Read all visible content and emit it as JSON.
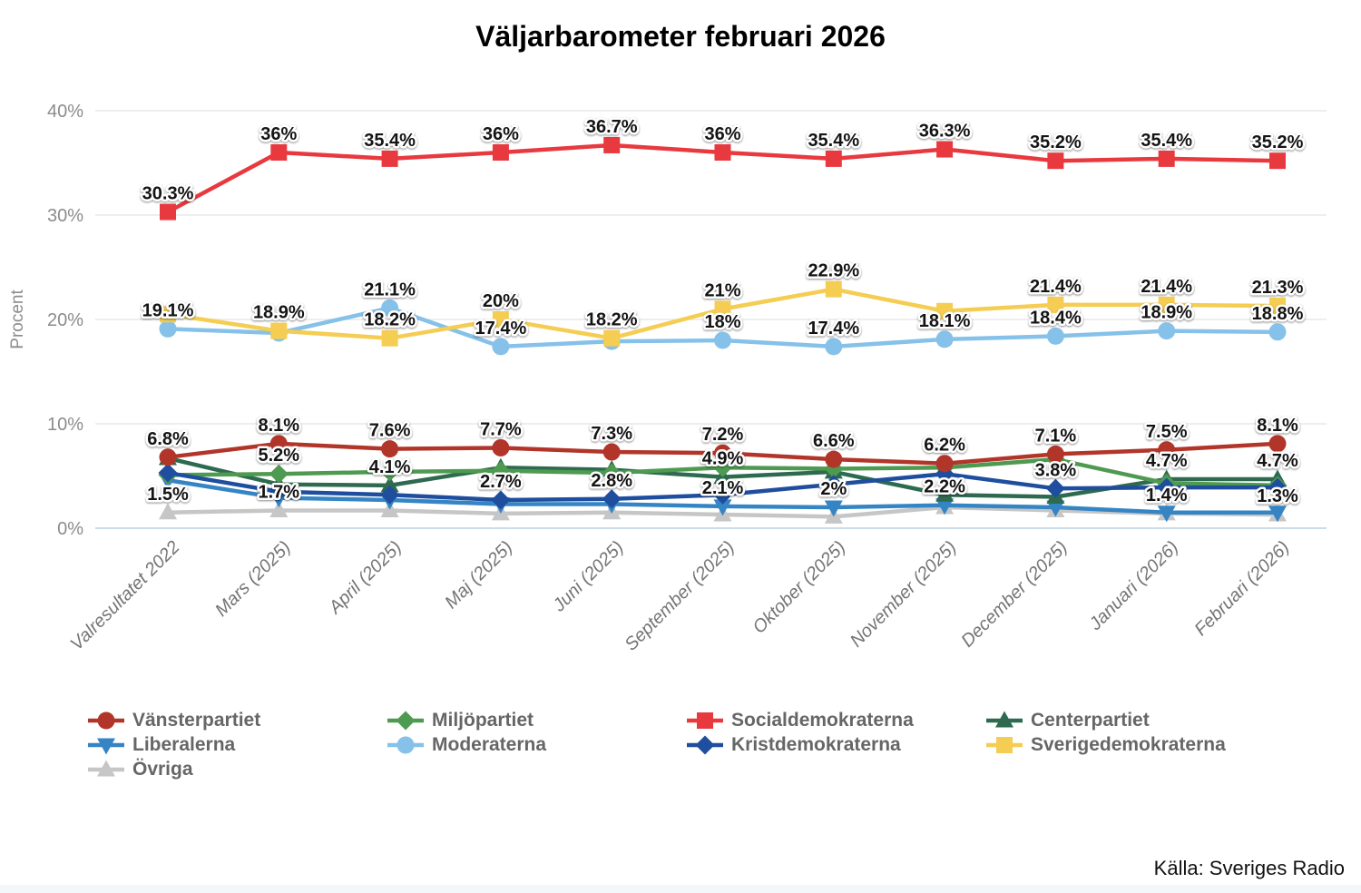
{
  "title": "Väljarbarometer februari 2026",
  "source": "Källa: Sveriges Radio",
  "chart_data": {
    "type": "line",
    "title": "Väljarbarometer februari 2026",
    "ylabel": "Procent",
    "ylim": [
      0,
      40
    ],
    "grid": true,
    "legend_position": "bottom",
    "yticks": [
      {
        "v": 0,
        "label": "0%"
      },
      {
        "v": 10,
        "label": "10%"
      },
      {
        "v": 20,
        "label": "20%"
      },
      {
        "v": 30,
        "label": "30%"
      },
      {
        "v": 40,
        "label": "40%"
      }
    ],
    "categories": [
      "Valresultatet 2022",
      "Mars (2025)",
      "April (2025)",
      "Maj (2025)",
      "Juni (2025)",
      "September (2025)",
      "Oktober (2025)",
      "November (2025)",
      "December (2025)",
      "Januari (2026)",
      "Februari (2026)"
    ],
    "series": [
      {
        "id": "ovriga",
        "name": "Övriga",
        "color": "#c6c6c6",
        "marker": "triangle-up",
        "values": [
          1.5,
          1.7,
          1.7,
          1.4,
          1.5,
          1.3,
          1.1,
          2.0,
          1.7,
          1.4,
          1.3
        ],
        "labels": [
          "1.5%",
          "1.7%",
          null,
          null,
          null,
          null,
          null,
          null,
          null,
          "1.4%",
          "1.3%"
        ]
      },
      {
        "id": "liberalerna",
        "name": "Liberalerna",
        "color": "#3585c5",
        "marker": "triangle-down",
        "values": [
          4.6,
          2.9,
          2.7,
          2.3,
          2.3,
          2.1,
          2.0,
          2.2,
          2.0,
          1.5,
          1.5
        ],
        "labels": [
          null,
          null,
          null,
          null,
          null,
          "2.1%",
          "2%",
          "2.2%",
          null,
          null,
          null
        ]
      },
      {
        "id": "centerpartiet",
        "name": "Centerpartiet",
        "color": "#2d6a4f",
        "marker": "triangle-up",
        "values": [
          6.7,
          4.2,
          4.1,
          5.8,
          5.6,
          4.9,
          5.4,
          3.2,
          3.0,
          4.7,
          4.7
        ],
        "labels": [
          null,
          null,
          "4.1%",
          null,
          null,
          "4.9%",
          null,
          null,
          null,
          "4.7%",
          "4.7%"
        ]
      },
      {
        "id": "miljopartiet",
        "name": "Miljöpartiet",
        "color": "#4e9a51",
        "marker": "diamond",
        "values": [
          5.1,
          5.2,
          5.4,
          5.5,
          5.3,
          5.8,
          5.7,
          5.8,
          6.6,
          4.3,
          4.1
        ],
        "labels": [
          null,
          "5.2%",
          null,
          null,
          null,
          null,
          null,
          null,
          null,
          null,
          null
        ]
      },
      {
        "id": "kristdemokraterna",
        "name": "Kristdemokraterna",
        "color": "#1f4e9e",
        "marker": "diamond",
        "values": [
          5.3,
          3.5,
          3.2,
          2.7,
          2.8,
          3.2,
          4.2,
          5.2,
          3.8,
          3.9,
          3.9
        ],
        "labels": [
          null,
          null,
          null,
          "2.7%",
          "2.8%",
          null,
          null,
          null,
          "3.8%",
          null,
          null
        ]
      },
      {
        "id": "vansterpartiet",
        "name": "Vänsterpartiet",
        "color": "#b23529",
        "marker": "circle",
        "values": [
          6.8,
          8.1,
          7.6,
          7.7,
          7.3,
          7.2,
          6.6,
          6.2,
          7.1,
          7.5,
          8.1
        ],
        "labels": [
          "6.8%",
          "8.1%",
          "7.6%",
          "7.7%",
          "7.3%",
          "7.2%",
          "6.6%",
          "6.2%",
          "7.1%",
          "7.5%",
          "8.1%"
        ]
      },
      {
        "id": "moderaterna",
        "name": "Moderaterna",
        "color": "#85c1e9",
        "marker": "circle",
        "values": [
          19.1,
          18.7,
          21.1,
          17.4,
          17.9,
          18.0,
          17.4,
          18.1,
          18.4,
          18.9,
          18.8
        ],
        "labels": [
          "19.1%",
          null,
          "21.1%",
          "17.4%",
          null,
          "18%",
          "17.4%",
          "18.1%",
          "18.4%",
          "18.9%",
          "18.8%"
        ]
      },
      {
        "id": "sverigedemokraterna",
        "name": "Sverigedemokraterna",
        "color": "#f4cd52",
        "marker": "square",
        "values": [
          20.5,
          18.9,
          18.2,
          20.0,
          18.2,
          21.0,
          22.9,
          20.8,
          21.4,
          21.4,
          21.3
        ],
        "labels": [
          null,
          "18.9%",
          "18.2%",
          "20%",
          "18.2%",
          "21%",
          "22.9%",
          null,
          "21.4%",
          "21.4%",
          "21.3%"
        ]
      },
      {
        "id": "socialdemokraterna",
        "name": "Socialdemokraterna",
        "color": "#e8393f",
        "marker": "square",
        "values": [
          30.3,
          36.0,
          35.4,
          36.0,
          36.7,
          36.0,
          35.4,
          36.3,
          35.2,
          35.4,
          35.2
        ],
        "labels": [
          "30.3%",
          "36%",
          "35.4%",
          "36%",
          "36.7%",
          "36%",
          "35.4%",
          "36.3%",
          "35.2%",
          "35.4%",
          "35.2%"
        ]
      }
    ]
  },
  "legend": {
    "items": [
      {
        "id": "vansterpartiet",
        "label": "Vänsterpartiet",
        "color": "#b23529",
        "marker": "circle"
      },
      {
        "id": "miljopartiet",
        "label": "Miljöpartiet",
        "color": "#4e9a51",
        "marker": "diamond"
      },
      {
        "id": "socialdemokraterna",
        "label": "Socialdemokraterna",
        "color": "#e8393f",
        "marker": "square"
      },
      {
        "id": "centerpartiet",
        "label": "Centerpartiet",
        "color": "#2d6a4f",
        "marker": "triangle-up"
      },
      {
        "id": "liberalerna",
        "label": "Liberalerna",
        "color": "#3585c5",
        "marker": "triangle-down"
      },
      {
        "id": "moderaterna",
        "label": "Moderaterna",
        "color": "#85c1e9",
        "marker": "circle"
      },
      {
        "id": "kristdemokraterna",
        "label": "Kristdemokraterna",
        "color": "#1f4e9e",
        "marker": "diamond"
      },
      {
        "id": "sverigedemokraterna",
        "label": "Sverigedemokraterna",
        "color": "#f4cd52",
        "marker": "square"
      },
      {
        "id": "ovriga",
        "label": "Övriga",
        "color": "#c6c6c6",
        "marker": "triangle-up"
      }
    ]
  }
}
